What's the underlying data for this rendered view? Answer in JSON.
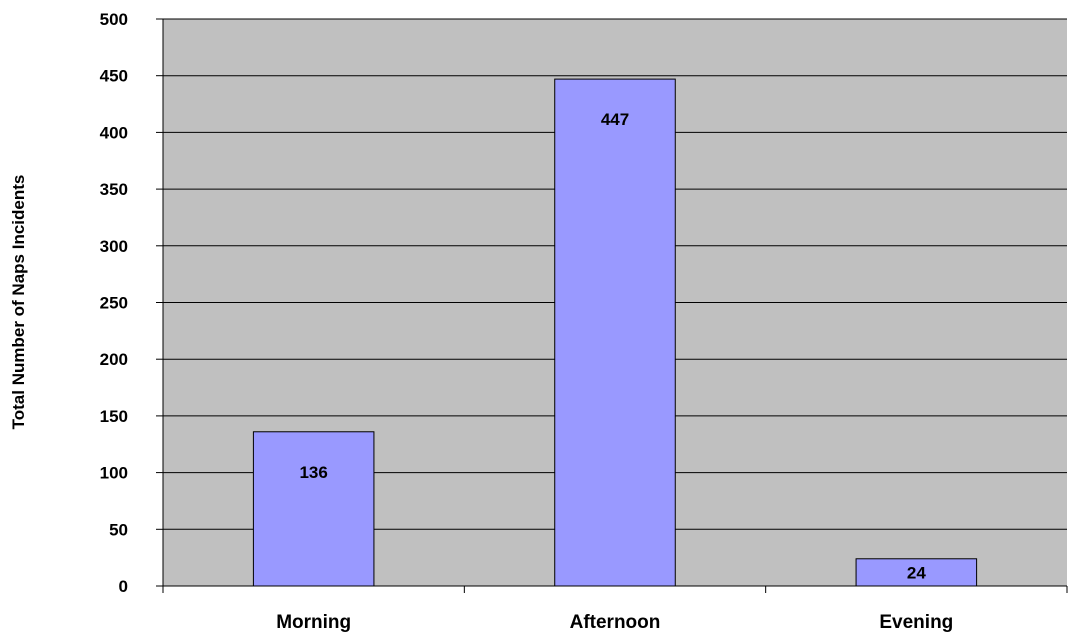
{
  "chart_data": {
    "type": "bar",
    "title": "",
    "xlabel": "",
    "ylabel": "Total Number of Naps Incidents",
    "categories": [
      "Morning",
      "Afternoon",
      "Evening"
    ],
    "values": [
      136,
      447,
      24
    ],
    "data_labels": [
      "136",
      "447",
      "24"
    ],
    "ylim": [
      0,
      500
    ],
    "y_ticks": [
      0,
      50,
      100,
      150,
      200,
      250,
      300,
      350,
      400,
      450,
      500
    ],
    "y_tick_labels": [
      "0",
      "50",
      "100",
      "150",
      "200",
      "250",
      "300",
      "350",
      "400",
      "450",
      "500"
    ],
    "grid": true,
    "legend": "none",
    "colors": {
      "plot_background": "#c0c0c0",
      "bar_fill": "#9999ff",
      "bar_stroke": "#000000",
      "grid": "#000000"
    }
  }
}
